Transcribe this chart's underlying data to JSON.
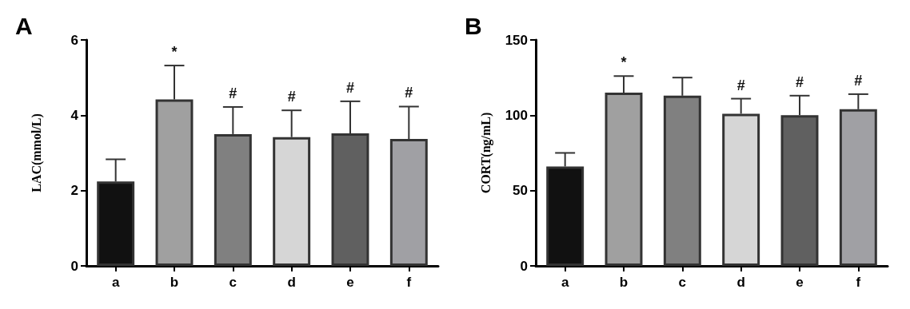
{
  "chart_data": [
    {
      "type": "bar",
      "title": "A",
      "ylabel": "LAC(mmol/L)",
      "categories": [
        "a",
        "b",
        "c",
        "d",
        "e",
        "f"
      ],
      "values": [
        2.24,
        4.42,
        3.5,
        3.42,
        3.52,
        3.37
      ],
      "errors": [
        [
          2.24,
          2.83
        ],
        [
          4.42,
          5.32
        ],
        [
          3.5,
          4.22
        ],
        [
          3.42,
          4.13
        ],
        [
          3.52,
          4.37
        ],
        [
          3.37,
          4.23
        ]
      ],
      "value_labels": [
        null,
        "*",
        "#",
        "#",
        "#",
        "#"
      ],
      "colors": [
        "#111111",
        "#a0a0a0",
        "#808080",
        "#d6d6d6",
        "#606060",
        "#a0a0a4"
      ],
      "ylim": [
        0,
        6
      ],
      "yticks": [
        0,
        2,
        4,
        6
      ],
      "grid": false
    },
    {
      "type": "bar",
      "title": "B",
      "ylabel": "CORT(ng/mL)",
      "categories": [
        "a",
        "b",
        "c",
        "d",
        "e",
        "f"
      ],
      "values": [
        66,
        115,
        113,
        101,
        100,
        104
      ],
      "errors": [
        [
          66,
          75
        ],
        [
          115,
          126
        ],
        [
          113,
          125
        ],
        [
          101,
          111
        ],
        [
          100,
          113
        ],
        [
          104,
          114
        ]
      ],
      "value_labels": [
        null,
        "*",
        null,
        "#",
        "#",
        "#"
      ],
      "colors": [
        "#111111",
        "#a0a0a0",
        "#808080",
        "#d6d6d6",
        "#606060",
        "#a0a0a4"
      ],
      "ylim": [
        0,
        150
      ],
      "yticks": [
        0,
        50,
        100,
        150
      ],
      "grid": false
    }
  ]
}
